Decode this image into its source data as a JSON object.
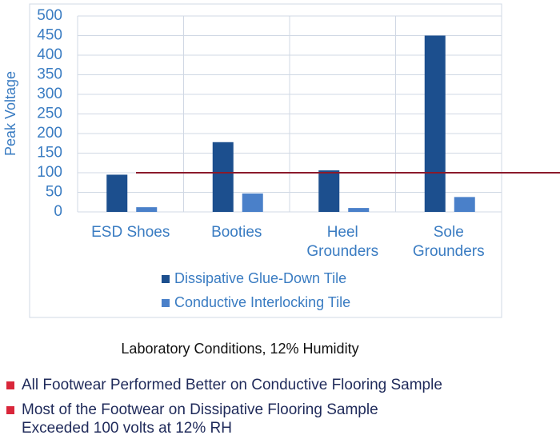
{
  "chart_data": {
    "type": "bar",
    "y_label": "Peak Voltage",
    "categories": [
      "ESD Shoes",
      "Booties",
      "Heel Grounders",
      "Sole Grounders"
    ],
    "series": [
      {
        "name": "Dissipative Glue-Down Tile",
        "color": "#1c4f8e",
        "values": [
          95,
          178,
          106,
          450
        ]
      },
      {
        "name": "Conductive Interlocking Tile",
        "color": "#4a80c9",
        "values": [
          12,
          47,
          10,
          38
        ]
      }
    ],
    "ylim": [
      0,
      500
    ],
    "yticks": [
      0,
      50,
      100,
      150,
      200,
      250,
      300,
      350,
      400,
      450,
      500
    ],
    "grid": true,
    "threshold": 100,
    "threshold_color": "#8b1a2b"
  },
  "note": "Laboratory Conditions, 12% Humidity",
  "bullets": [
    "All Footwear Performed Better on Conductive Flooring Sample",
    "Most of the Footwear on Dissipative Flooring Sample Exceeded 100 volts at 12% RH"
  ]
}
